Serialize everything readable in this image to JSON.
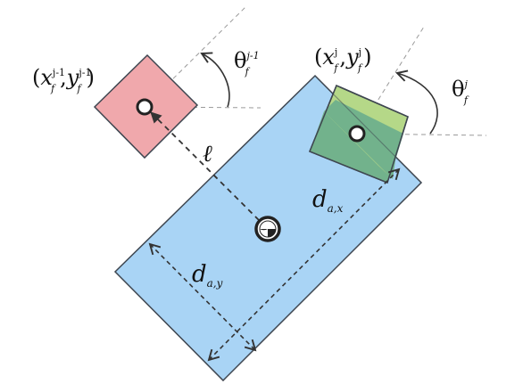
{
  "figure": {
    "colors": {
      "body_fill": "#a9d4f5",
      "body_stroke": "#3e4650",
      "prev_frame_fill": "#f0a8ac",
      "curr_frame_fill": "#9fcc78",
      "curr_frame_overlap_fill": "#6fb08a",
      "dash": "#8a8a8a",
      "arrow": "#333333"
    },
    "labels": {
      "prev_pose": {
        "open": "(",
        "x": "x",
        "x_sup": "j-1",
        "x_sub": "f",
        "comma": ",",
        "y": "y",
        "y_sup": "j-1",
        "y_sub": "f",
        "close": ")"
      },
      "curr_pose": {
        "open": "(",
        "x": "x",
        "x_sup": "j",
        "x_sub": "f",
        "comma": ",",
        "y": "y",
        "y_sup": "j",
        "y_sub": "f",
        "close": ")"
      },
      "prev_theta": {
        "symbol": "θ",
        "sup": "j-1",
        "sub": "f"
      },
      "curr_theta": {
        "symbol": "θ",
        "sup": "j",
        "sub": "f"
      },
      "ell": "ℓ",
      "d_ax": {
        "symbol": "d",
        "sub": "a,x"
      },
      "d_ay": {
        "symbol": "d",
        "sub": "a,y"
      }
    }
  }
}
